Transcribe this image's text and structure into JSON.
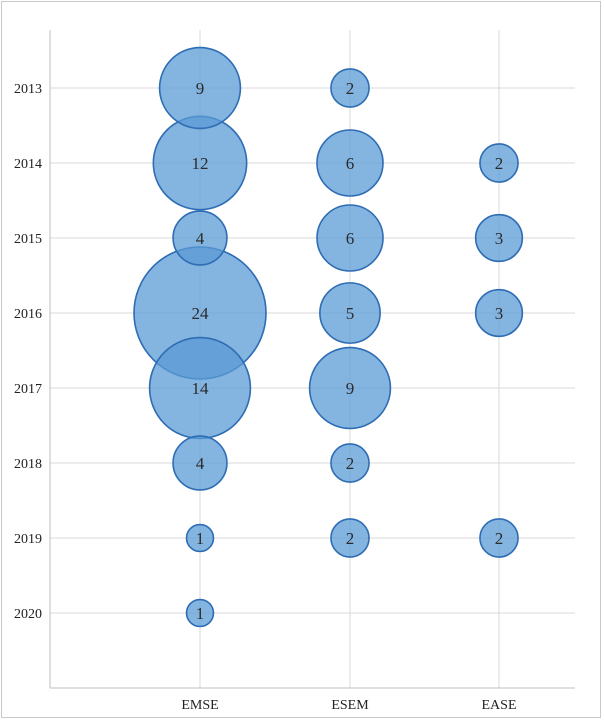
{
  "chart_data": {
    "type": "bubble",
    "title": "",
    "xlabel": "",
    "ylabel": "",
    "categories": [
      "EMSE",
      "ESEM",
      "EASE"
    ],
    "years": [
      "2013",
      "2014",
      "2015",
      "2016",
      "2017",
      "2018",
      "2019",
      "2020"
    ],
    "grid": true,
    "legend": "none",
    "bubble_color": "#5b9bd5",
    "bubble_edge_color": "#2e6db4",
    "points": [
      {
        "category": "EMSE",
        "year": "2013",
        "value": 9
      },
      {
        "category": "EMSE",
        "year": "2014",
        "value": 12
      },
      {
        "category": "EMSE",
        "year": "2015",
        "value": 4
      },
      {
        "category": "EMSE",
        "year": "2016",
        "value": 24
      },
      {
        "category": "EMSE",
        "year": "2017",
        "value": 14
      },
      {
        "category": "EMSE",
        "year": "2018",
        "value": 4
      },
      {
        "category": "EMSE",
        "year": "2019",
        "value": 1
      },
      {
        "category": "EMSE",
        "year": "2020",
        "value": 1
      },
      {
        "category": "ESEM",
        "year": "2013",
        "value": 2
      },
      {
        "category": "ESEM",
        "year": "2014",
        "value": 6
      },
      {
        "category": "ESEM",
        "year": "2015",
        "value": 6
      },
      {
        "category": "ESEM",
        "year": "2016",
        "value": 5
      },
      {
        "category": "ESEM",
        "year": "2017",
        "value": 9
      },
      {
        "category": "ESEM",
        "year": "2018",
        "value": 2
      },
      {
        "category": "ESEM",
        "year": "2019",
        "value": 2
      },
      {
        "category": "EASE",
        "year": "2014",
        "value": 2
      },
      {
        "category": "EASE",
        "year": "2015",
        "value": 3
      },
      {
        "category": "EASE",
        "year": "2016",
        "value": 3
      },
      {
        "category": "EASE",
        "year": "2019",
        "value": 2
      }
    ]
  }
}
